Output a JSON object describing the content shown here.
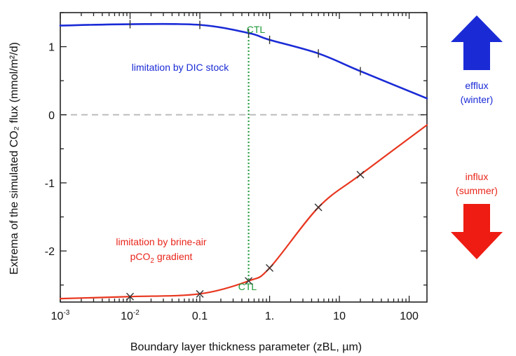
{
  "chart_data": {
    "type": "line",
    "xscale": "log",
    "xlim": [
      0.001,
      180
    ],
    "ylim": [
      -2.75,
      1.5
    ],
    "xlabel": "Boundary layer thickness parameter (zBL, µm)",
    "ylabel": "Extrema of the simulated CO₂ flux (mmol/m²/d)",
    "x_ticks": [
      {
        "value": 0.001,
        "base": "10",
        "exp": "-3"
      },
      {
        "value": 0.01,
        "base": "10",
        "exp": "-2"
      },
      {
        "value": 0.1,
        "base": "0.1",
        "exp": ""
      },
      {
        "value": 1,
        "base": "1.",
        "exp": ""
      },
      {
        "value": 10,
        "base": "10",
        "exp": ""
      },
      {
        "value": 100,
        "base": "100",
        "exp": ""
      }
    ],
    "y_ticks": [
      {
        "value": 1,
        "label": "1"
      },
      {
        "value": 0,
        "label": "0"
      },
      {
        "value": -1,
        "label": "-1"
      },
      {
        "value": -2,
        "label": "-2"
      }
    ],
    "zero_line": true,
    "series": [
      {
        "name": "efflux",
        "color": "#1a2bd6",
        "marker": "plus",
        "x": [
          0.001,
          0.01,
          0.1,
          0.5,
          1,
          5,
          20,
          180
        ],
        "y": [
          1.31,
          1.33,
          1.32,
          1.2,
          1.1,
          0.9,
          0.64,
          0.24
        ],
        "marker_x": [
          0.01,
          0.1,
          0.5,
          1,
          5,
          20
        ]
      },
      {
        "name": "influx",
        "color": "#e8361f",
        "marker": "cross",
        "x": [
          0.001,
          0.01,
          0.1,
          0.5,
          1,
          5,
          20,
          180
        ],
        "y": [
          -2.7,
          -2.67,
          -2.63,
          -2.44,
          -2.25,
          -1.36,
          -0.88,
          -0.15
        ],
        "marker_x": [
          0.01,
          0.1,
          0.5,
          1,
          5,
          20
        ]
      }
    ],
    "ctl_line": {
      "x": 0.5,
      "y_top": 1.2,
      "y_bottom": -2.44,
      "color": "#1e9a3a"
    },
    "annotations": {
      "ctl_top": "CTL",
      "ctl_bottom": "CTL",
      "dic_limit": "limitation by DIC stock",
      "brine_line1": "limitation by brine-air",
      "brine_line2_pre": "pCO",
      "brine_line2_sub": "2",
      "brine_line2_post": " gradient"
    }
  },
  "side_panel": {
    "efflux": {
      "label": "efflux",
      "sub": "(winter)",
      "color": "#1a2bd6"
    },
    "influx": {
      "label": "influx",
      "sub": "(summer)",
      "color": "#e8261b"
    }
  }
}
